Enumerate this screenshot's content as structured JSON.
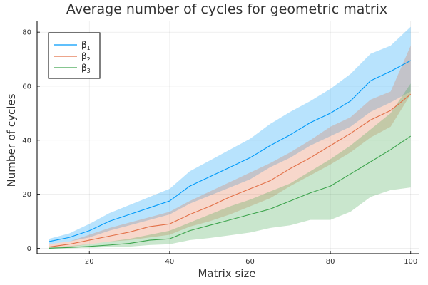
{
  "chart_data": {
    "type": "line",
    "title": "Average number of cycles for geometric matrix",
    "xlabel": "Matrix size",
    "ylabel": "Number of cycles",
    "xlim": [
      7,
      102
    ],
    "ylim": [
      -2,
      84
    ],
    "xticks": [
      20,
      40,
      60,
      80,
      100
    ],
    "yticks": [
      0,
      20,
      40,
      60,
      80
    ],
    "grid": true,
    "legend_position": "top-left",
    "x": [
      10,
      15,
      20,
      25,
      30,
      35,
      40,
      45,
      50,
      55,
      60,
      65,
      70,
      75,
      80,
      85,
      90,
      95,
      100
    ],
    "series": [
      {
        "name": "β",
        "subscript": "1",
        "color": "#009af9",
        "band_color": "#009af9",
        "values": [
          2.5,
          4,
          6.5,
          10,
          12.5,
          15,
          17.5,
          23,
          26.5,
          30,
          33.5,
          38,
          42,
          46.5,
          50,
          54.5,
          62,
          65.5,
          69.5
        ],
        "upper": [
          3.5,
          5.5,
          9,
          13,
          16,
          19,
          22,
          28.5,
          32.5,
          36.5,
          40.5,
          46,
          50.5,
          54.5,
          59,
          64.5,
          72,
          75,
          82
        ],
        "lower": [
          1.5,
          2.5,
          4,
          6.5,
          8.5,
          10.5,
          12.5,
          16.5,
          19.5,
          22.5,
          25.5,
          30,
          33.5,
          38,
          41.5,
          45,
          50.5,
          54,
          58
        ]
      },
      {
        "name": "β",
        "subscript": "2",
        "color": "#e26f46",
        "band_color": "#e26f46",
        "values": [
          0.5,
          1.5,
          3,
          4.5,
          6,
          8,
          9,
          12.5,
          15.5,
          19,
          22,
          25,
          29.5,
          33.5,
          38,
          42.5,
          47.5,
          51,
          57
        ],
        "upper": [
          1.5,
          2.5,
          5,
          7.5,
          9.5,
          11.5,
          13.5,
          17.5,
          21,
          24.5,
          28,
          31.5,
          35.5,
          40,
          45,
          48.5,
          55,
          58,
          75
        ],
        "lower": [
          0,
          0.5,
          1.5,
          2.5,
          3,
          4,
          5,
          8,
          10,
          12.5,
          15.5,
          18.5,
          23,
          27,
          31,
          35.5,
          41,
          45,
          57
        ]
      },
      {
        "name": "β",
        "subscript": "3",
        "color": "#3da44d",
        "band_color": "#3da44d",
        "values": [
          0,
          0.3,
          0.7,
          1.2,
          1.8,
          3,
          3.5,
          6.5,
          8.5,
          10.5,
          12.5,
          14.5,
          17.5,
          20.5,
          23,
          27.5,
          32,
          36.5,
          41.5
        ],
        "upper": [
          0.3,
          0.8,
          1.5,
          2.5,
          3.5,
          5,
          6.5,
          9.5,
          12.5,
          15.5,
          18,
          21,
          24,
          28.5,
          33,
          38,
          44,
          50,
          61
        ],
        "lower": [
          0,
          0,
          0.2,
          0.4,
          0.6,
          1.2,
          1.5,
          3,
          3.8,
          4.8,
          5.8,
          7.5,
          8.5,
          10.5,
          10.5,
          13.5,
          19,
          21.5,
          22.5
        ]
      }
    ]
  }
}
